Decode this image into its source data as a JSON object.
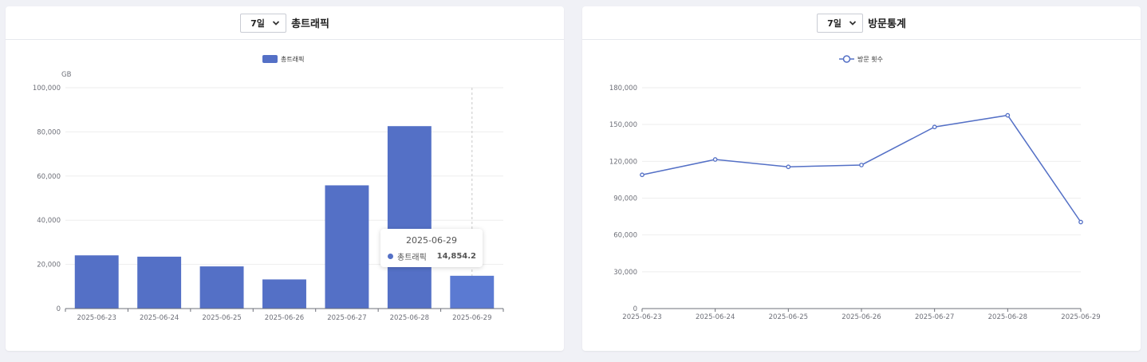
{
  "colors": {
    "series": "#5470c6",
    "grid": "#eeeeee",
    "axis": "#6e7079",
    "text": "#6e7079"
  },
  "panels": [
    {
      "select_value": "7일",
      "title": "총트래픽",
      "chart_data": {
        "type": "bar",
        "categories": [
          "2025-06-23",
          "2025-06-24",
          "2025-06-25",
          "2025-06-26",
          "2025-06-27",
          "2025-06-28",
          "2025-06-29"
        ],
        "series": [
          {
            "name": "총트래픽",
            "values": [
              24100,
              23500,
              19100,
              13200,
              55800,
              82600,
              14854.2
            ]
          }
        ],
        "ylabel": "GB",
        "ylim": [
          0,
          100000
        ],
        "yticks": [
          "0",
          "20,000",
          "40,000",
          "60,000",
          "80,000",
          "100,000"
        ],
        "grid": true,
        "legend": "top-center",
        "tooltip": {
          "category": "2025-06-29",
          "series": "총트래픽",
          "value": "14,854.2"
        }
      }
    },
    {
      "select_value": "7일",
      "title": "방문통계",
      "chart_data": {
        "type": "line",
        "categories": [
          "2025-06-23",
          "2025-06-24",
          "2025-06-25",
          "2025-06-26",
          "2025-06-27",
          "2025-06-28",
          "2025-06-29"
        ],
        "series": [
          {
            "name": "방문 횟수",
            "values": [
              109000,
              121500,
              115500,
              117000,
              148000,
              157500,
              70500
            ]
          }
        ],
        "ylim": [
          0,
          180000
        ],
        "yticks": [
          "0",
          "30,000",
          "60,000",
          "90,000",
          "120,000",
          "150,000",
          "180,000"
        ],
        "grid": true,
        "legend": "top-center"
      }
    }
  ]
}
